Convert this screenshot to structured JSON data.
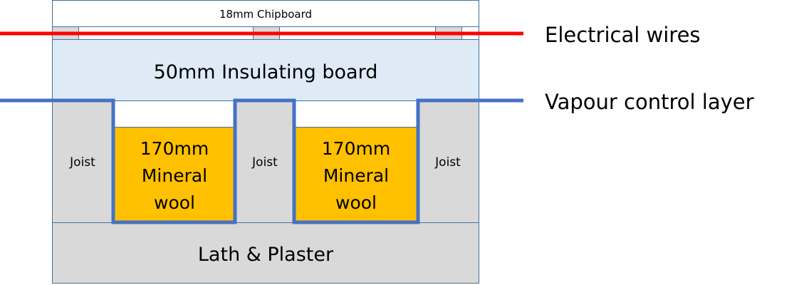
{
  "layers": {
    "chipboard": "18mm Chipboard",
    "insulating_board": "50mm Insulating board",
    "joist": "Joist",
    "mineral_wool_line1": "170mm",
    "mineral_wool_line2": "Mineral",
    "mineral_wool_line3": "wool",
    "plaster": "Lath & Plaster"
  },
  "labels": {
    "electrical_wires": "Electrical wires",
    "vapour_control_layer": "Vapour control layer"
  },
  "colors": {
    "outline": "#41719c",
    "joist": "#d9d9d9",
    "insulating_board": "#deebf7",
    "mineral_wool": "#ffc000",
    "wires": "#ff0000",
    "vcl": "#4472c4"
  }
}
